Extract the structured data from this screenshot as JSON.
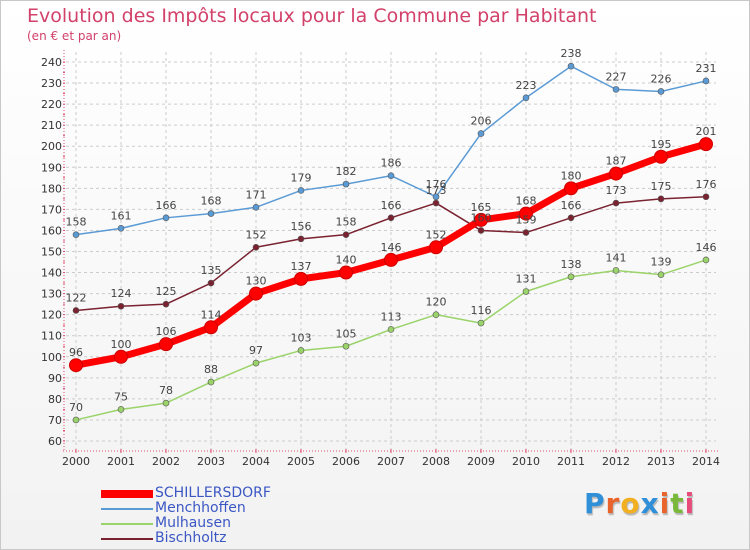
{
  "title": "Evolution des Impôts locaux pour la Commune par Habitant",
  "subtitle": "(en € et par an)",
  "logo": {
    "letters": [
      "P",
      "r",
      "o",
      "x",
      "i",
      "t",
      "i"
    ],
    "colors": [
      "#2f8fd8",
      "#e8642c",
      "#f2b020",
      "#2f8fd8",
      "#e8642c",
      "#7ab83a",
      "#e84a7a"
    ]
  },
  "chart_data": {
    "type": "line",
    "title": "Evolution des Impôts locaux pour la Commune par Habitant",
    "subtitle": "(en € et par an)",
    "x": [
      "2000",
      "2001",
      "2002",
      "2003",
      "2004",
      "2005",
      "2006",
      "2007",
      "2008",
      "2009",
      "2010",
      "2011",
      "2012",
      "2013",
      "2014"
    ],
    "ylim": [
      60,
      240
    ],
    "yticks": [
      60,
      70,
      80,
      90,
      100,
      110,
      120,
      130,
      140,
      150,
      160,
      170,
      180,
      190,
      200,
      210,
      220,
      230,
      240
    ],
    "grid": true,
    "legend": "bottom-left",
    "series": [
      {
        "name": "SCHILLERSDORF",
        "color": "#ff0000",
        "values": [
          96,
          100,
          106,
          114,
          130,
          137,
          140,
          146,
          152,
          165,
          168,
          180,
          187,
          195,
          201
        ]
      },
      {
        "name": "Menchhoffen",
        "color": "#5b9bd5",
        "values": [
          158,
          161,
          166,
          168,
          171,
          179,
          182,
          186,
          176,
          206,
          223,
          238,
          227,
          226,
          231
        ]
      },
      {
        "name": "Mulhausen",
        "color": "#9ad36a",
        "values": [
          70,
          75,
          78,
          88,
          97,
          103,
          105,
          113,
          120,
          116,
          131,
          138,
          141,
          139,
          146
        ]
      },
      {
        "name": "Bischholtz",
        "color": "#7a2230",
        "values": [
          122,
          124,
          125,
          135,
          152,
          156,
          158,
          166,
          173,
          160,
          159,
          166,
          173,
          175,
          176
        ]
      }
    ]
  }
}
